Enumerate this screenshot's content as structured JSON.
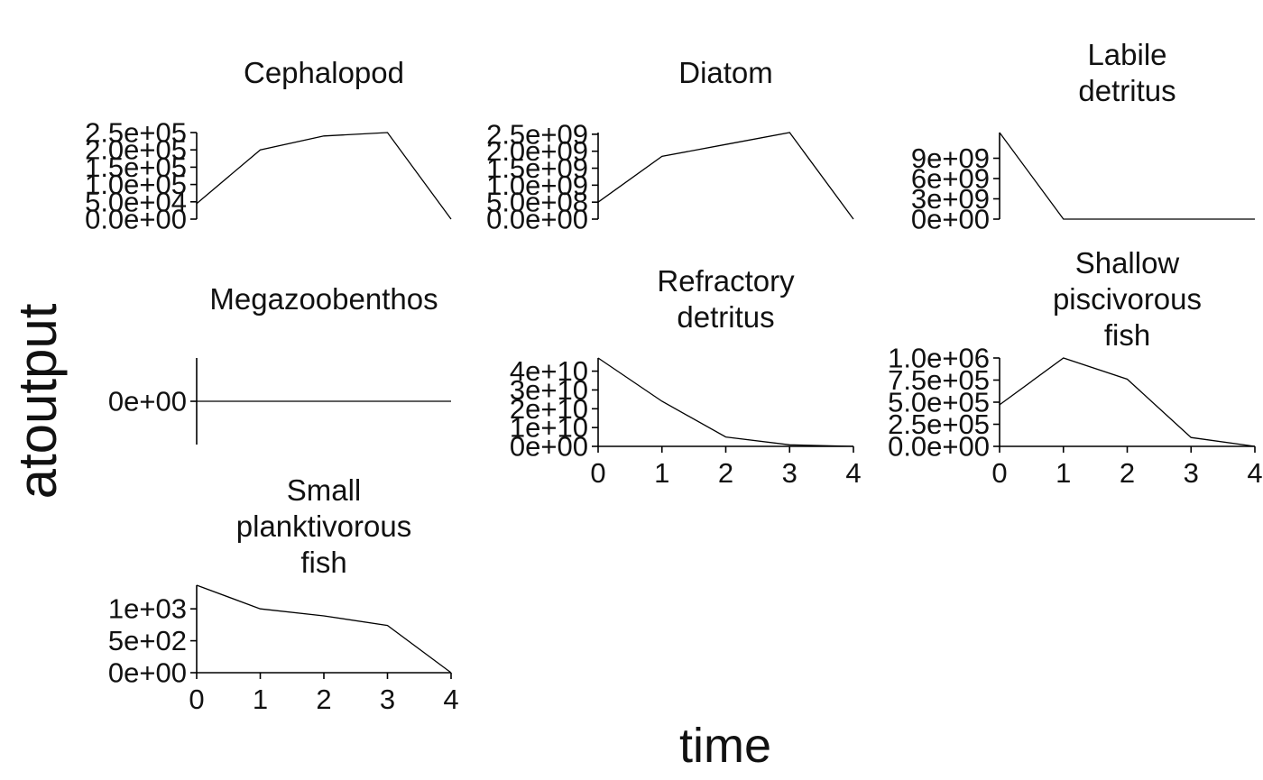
{
  "chart_data": {
    "type": "line",
    "layout": "facet-wrap",
    "xlabel": "time",
    "ylabel": "atoutput",
    "panels": [
      {
        "title": "Cephalopod",
        "x": [
          0,
          1,
          2,
          3,
          4
        ],
        "y": [
          45000,
          200000,
          240000,
          250000,
          0
        ],
        "ylim": [
          0,
          250000
        ],
        "yticks": [
          0,
          50000,
          100000,
          150000,
          200000,
          250000
        ],
        "yticklabels": [
          "0.0e+00",
          "5.0e+04",
          "1.0e+05",
          "1.5e+05",
          "2.0e+05",
          "2.5e+05"
        ],
        "show_x_axis": false
      },
      {
        "title": "Diatom",
        "x": [
          0,
          1,
          2,
          3,
          4
        ],
        "y": [
          500000000,
          1850000000,
          2200000000,
          2550000000,
          0
        ],
        "ylim": [
          0,
          2550000000
        ],
        "yticks": [
          0,
          500000000,
          1000000000,
          1500000000,
          2000000000,
          2500000000
        ],
        "yticklabels": [
          "0.0e+00",
          "5.0e+08",
          "1.0e+09",
          "1.5e+09",
          "2.0e+09",
          "2.5e+09"
        ],
        "show_x_axis": false
      },
      {
        "title": "Labile detritus",
        "x": [
          0,
          1,
          2,
          3,
          4
        ],
        "y": [
          12800000000,
          0,
          0,
          0,
          0
        ],
        "ylim": [
          0,
          12800000000
        ],
        "yticks": [
          0,
          3000000000,
          6000000000,
          9000000000
        ],
        "yticklabels": [
          "0e+00",
          "3e+09",
          "6e+09",
          "9e+09"
        ],
        "show_x_axis": false
      },
      {
        "title": "Megazoobenthos",
        "x": [
          0,
          1,
          2,
          3,
          4
        ],
        "y": [
          0,
          0,
          0,
          0,
          0
        ],
        "ylim": [
          -1,
          1
        ],
        "yticks": [
          0
        ],
        "yticklabels": [
          "0e+00"
        ],
        "show_x_axis": false
      },
      {
        "title": "Refractory detritus",
        "x": [
          0,
          1,
          2,
          3,
          4
        ],
        "y": [
          47000000000,
          24000000000,
          5000000000,
          800000000,
          0
        ],
        "ylim": [
          0,
          47000000000
        ],
        "yticks": [
          0,
          10000000000,
          20000000000,
          30000000000,
          40000000000
        ],
        "yticklabels": [
          "0e+00",
          "1e+10",
          "2e+10",
          "3e+10",
          "4e+10"
        ],
        "show_x_axis": true,
        "xticks": [
          0,
          1,
          2,
          3,
          4
        ],
        "xticklabels": [
          "0",
          "1",
          "2",
          "3",
          "4"
        ]
      },
      {
        "title": "Shallow piscivorous fish",
        "x": [
          0,
          1,
          2,
          3,
          4
        ],
        "y": [
          470000,
          1000000,
          760000,
          100000,
          0
        ],
        "ylim": [
          0,
          1000000
        ],
        "yticks": [
          0,
          250000,
          500000,
          750000,
          1000000
        ],
        "yticklabels": [
          "0.0e+00",
          "2.5e+05",
          "5.0e+05",
          "7.5e+05",
          "1.0e+06"
        ],
        "show_x_axis": true,
        "xticks": [
          0,
          1,
          2,
          3,
          4
        ],
        "xticklabels": [
          "0",
          "1",
          "2",
          "3",
          "4"
        ]
      },
      {
        "title": "Small planktivorous fish",
        "x": [
          0,
          1,
          2,
          3,
          4
        ],
        "y": [
          1370,
          1000,
          890,
          740,
          0
        ],
        "ylim": [
          0,
          1370
        ],
        "yticks": [
          0,
          500,
          1000
        ],
        "yticklabels": [
          "0e+00",
          "5e+02",
          "1e+03"
        ],
        "show_x_axis": true,
        "xticks": [
          0,
          1,
          2,
          3,
          4
        ],
        "xticklabels": [
          "0",
          "1",
          "2",
          "3",
          "4"
        ]
      }
    ]
  }
}
